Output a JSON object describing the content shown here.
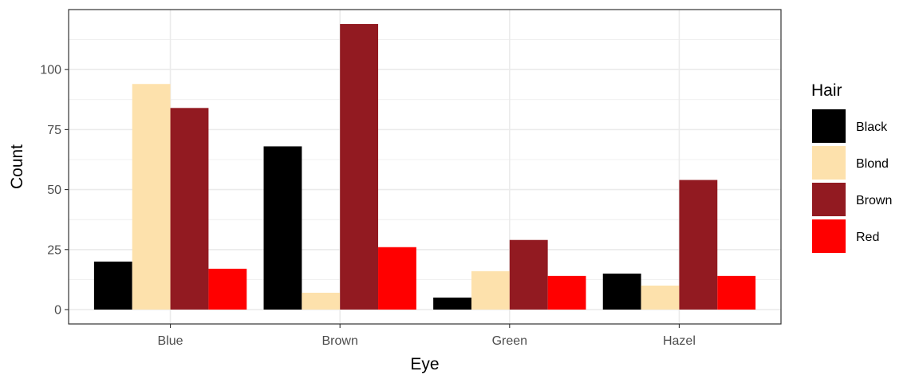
{
  "chart_data": {
    "type": "bar",
    "xlabel": "Eye",
    "ylabel": "Count",
    "categories": [
      "Blue",
      "Brown",
      "Green",
      "Hazel"
    ],
    "series": [
      {
        "name": "Black",
        "color": "#000000",
        "values": [
          20,
          68,
          5,
          15
        ]
      },
      {
        "name": "Blond",
        "color": "#FDE1AC",
        "values": [
          94,
          7,
          16,
          10
        ]
      },
      {
        "name": "Brown",
        "color": "#921A21",
        "values": [
          84,
          119,
          29,
          54
        ]
      },
      {
        "name": "Red",
        "color": "#FF0000",
        "values": [
          17,
          26,
          14,
          14
        ]
      }
    ],
    "ylim": [
      -6,
      125
    ],
    "yticks": [
      0,
      25,
      50,
      75,
      100
    ],
    "legend": {
      "title": "Hair",
      "position": "right"
    },
    "grid": true
  }
}
